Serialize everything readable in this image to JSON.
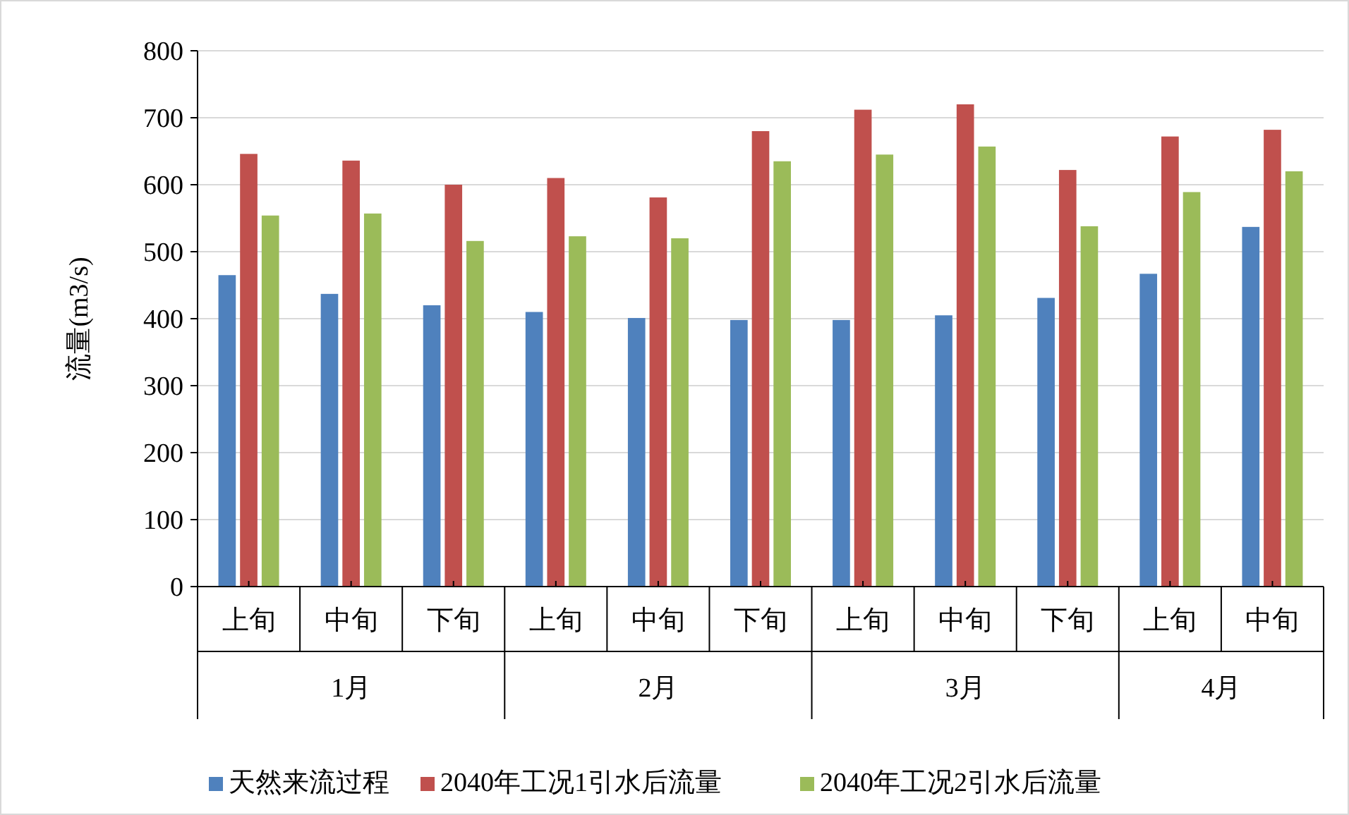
{
  "chart_data": {
    "type": "bar",
    "ylabel": "流量(m3/s)",
    "categories": [
      "上旬",
      "中旬",
      "下旬",
      "上旬",
      "中旬",
      "下旬",
      "上旬",
      "中旬",
      "下旬",
      "上旬",
      "中旬"
    ],
    "series": [
      {
        "name": "天然来流过程",
        "color": "#4f81bd",
        "values": [
          465,
          437,
          420,
          410,
          401,
          398,
          398,
          405,
          431,
          467,
          537
        ]
      },
      {
        "name": "2040年工况1引水后流量",
        "color": "#c0504d",
        "values": [
          646,
          636,
          600,
          610,
          581,
          680,
          712,
          720,
          622,
          672,
          682
        ]
      },
      {
        "name": "2040年工况2引水后流量",
        "color": "#9bbb59",
        "values": [
          554,
          557,
          516,
          523,
          520,
          635,
          645,
          657,
          538,
          589,
          620
        ]
      }
    ],
    "annotations": [
      "1月",
      "2月",
      "3月",
      "4月"
    ],
    "ylim": [
      0,
      800
    ],
    "yticks": [
      0,
      100,
      200,
      300,
      400,
      500,
      600,
      700,
      800
    ],
    "grid": "y",
    "legend": "bottom"
  }
}
